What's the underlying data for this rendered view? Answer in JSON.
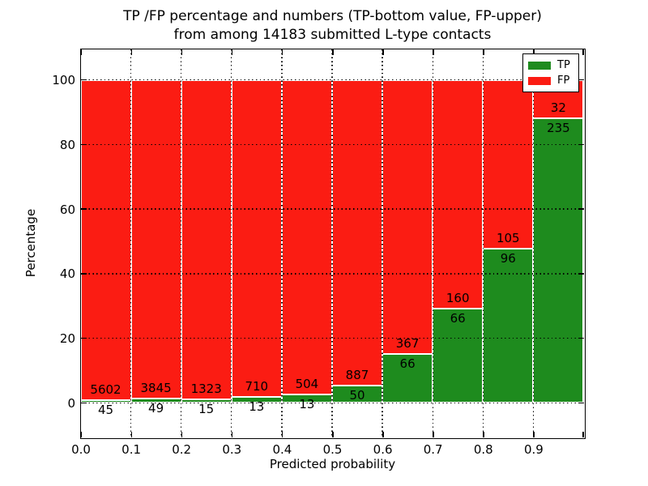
{
  "chart_data": {
    "type": "bar",
    "stacked": true,
    "normalized_to_percent": true,
    "title_line1": "TP /FP percentage and numbers (TP-bottom value, FP-upper)",
    "title_line2": "from among 14183 submitted L-type contacts",
    "total_contacts": 14183,
    "xlabel": "Predicted probability",
    "ylabel": "Percentage",
    "x_tick_labels": [
      "0.0",
      "0.1",
      "0.2",
      "0.3",
      "0.4",
      "0.5",
      "0.6",
      "0.7",
      "0.8",
      "0.9"
    ],
    "y_tick_labels": [
      "0",
      "20",
      "40",
      "60",
      "80",
      "100"
    ],
    "y_ticks": [
      0,
      20,
      40,
      60,
      80,
      100
    ],
    "xlim": [
      0.0,
      1.0
    ],
    "ylim": [
      -10.5,
      110
    ],
    "bin_width": 0.1,
    "categories": [
      "0.0-0.1",
      "0.1-0.2",
      "0.2-0.3",
      "0.3-0.4",
      "0.4-0.5",
      "0.5-0.6",
      "0.6-0.7",
      "0.7-0.8",
      "0.8-0.9",
      "0.9-1.0"
    ],
    "series": [
      {
        "name": "TP",
        "color": "#1e8b1e",
        "position": "bottom",
        "values": [
          45,
          49,
          15,
          13,
          13,
          50,
          66,
          66,
          96,
          235
        ]
      },
      {
        "name": "FP",
        "color": "#fb1c13",
        "position": "top",
        "values": [
          5602,
          3845,
          1323,
          710,
          504,
          887,
          367,
          160,
          105,
          32
        ]
      }
    ],
    "grid": "dotted",
    "legend_position": "upper right",
    "colors": {
      "axis": "#000000",
      "background": "#ffffff",
      "text": "#000000"
    }
  }
}
